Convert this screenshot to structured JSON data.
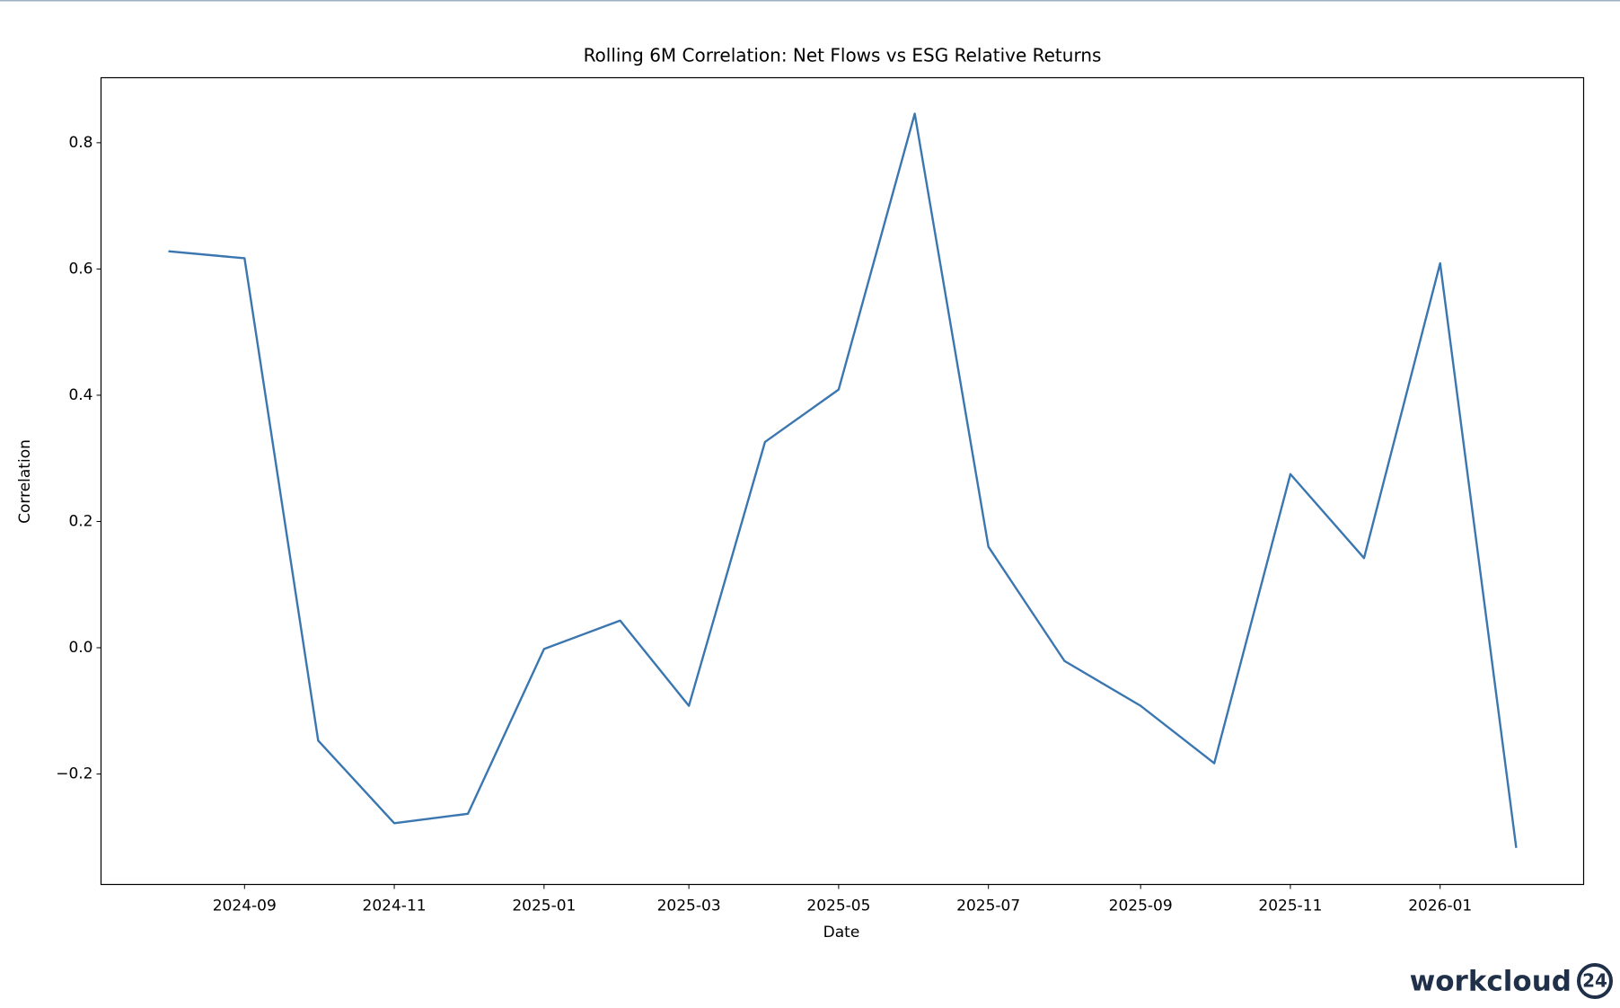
{
  "chart_data": {
    "type": "line",
    "title": "Rolling 6M Correlation: Net Flows vs ESG Relative Returns",
    "xlabel": "Date",
    "ylabel": "Correlation",
    "x": [
      "2024-08",
      "2024-09",
      "2024-10",
      "2024-11",
      "2024-12",
      "2025-01",
      "2025-02",
      "2025-03",
      "2025-04",
      "2025-05",
      "2025-06",
      "2025-07",
      "2025-08",
      "2025-09",
      "2025-10",
      "2025-11",
      "2025-12",
      "2026-01",
      "2026-02"
    ],
    "values": [
      0.628,
      0.617,
      -0.147,
      -0.278,
      -0.263,
      -0.002,
      0.043,
      -0.092,
      0.326,
      0.409,
      0.846,
      0.16,
      -0.021,
      -0.092,
      -0.183,
      0.275,
      0.142,
      0.609,
      -0.317
    ],
    "color": "#3a76b0",
    "xticks": [
      "2024-09",
      "2024-11",
      "2025-01",
      "2025-03",
      "2025-05",
      "2025-07",
      "2025-09",
      "2025-11",
      "2026-01"
    ],
    "ylim": [
      -0.375,
      0.903
    ],
    "yticks": [
      {
        "value": -0.2,
        "label": "−0.2"
      },
      {
        "value": 0,
        "label": "0.0"
      },
      0.2,
      0.4,
      0.6,
      0.8
    ],
    "grid": false
  },
  "branding": {
    "name": "workcloud",
    "badge": "24"
  }
}
